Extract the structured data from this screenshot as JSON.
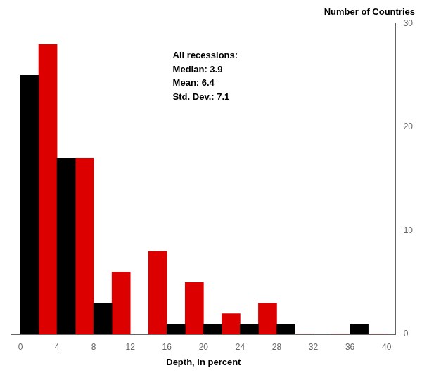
{
  "chart_data": {
    "type": "bar",
    "title": "Number of Countries",
    "xlabel": "Depth, in percent",
    "annotation": "All recessions:\nMedian: 3.9\nMean: 6.4\nStd. Dev.: 7.1",
    "bins": [
      0,
      4,
      8,
      12,
      16,
      20,
      24,
      28,
      32,
      36,
      40
    ],
    "series": [
      {
        "color": "#000000",
        "values": [
          25,
          17,
          3,
          0,
          1,
          1,
          1,
          1,
          0,
          1
        ]
      },
      {
        "color": "#dd0000",
        "values": [
          28,
          17,
          6,
          8,
          5,
          2,
          3,
          0,
          0,
          0
        ]
      }
    ],
    "xlim": [
      -1,
      41
    ],
    "xticks": [
      0,
      4,
      8,
      12,
      16,
      20,
      24,
      28,
      32,
      36,
      40
    ],
    "ylim": [
      0,
      30
    ],
    "yticks": [
      0,
      10,
      20,
      30
    ],
    "grid": false
  }
}
